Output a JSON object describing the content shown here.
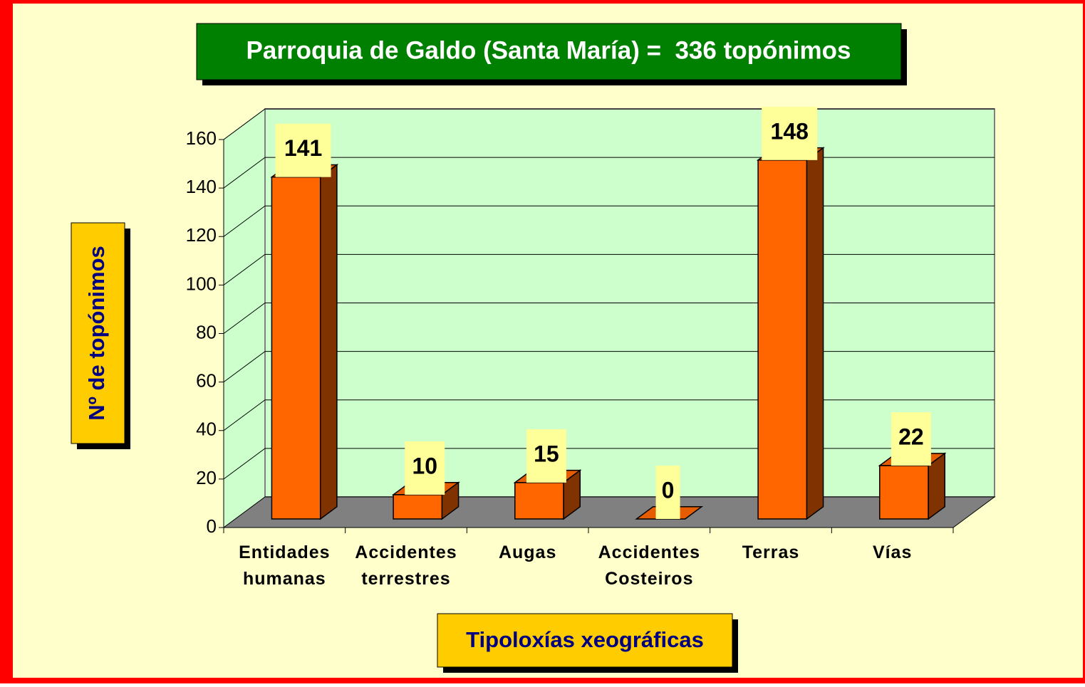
{
  "chart_data": {
    "type": "bar3d",
    "title": "Parroquia de Galdo (Santa María) =  336 topónimos",
    "y_label": "Nº de topónimos",
    "x_label": "Tipoloxías xeográficas",
    "categories": [
      "Entidades humanas",
      "Accidentes terrestres",
      "Augas",
      "Accidentes Costeiros",
      "Terras",
      "Vías"
    ],
    "values": [
      141,
      10,
      15,
      0,
      148,
      22
    ],
    "color": "#ff6600",
    "ylim": [
      0,
      160
    ],
    "yticks": [
      0,
      20,
      40,
      60,
      80,
      100,
      120,
      140,
      160
    ],
    "grid": true
  }
}
